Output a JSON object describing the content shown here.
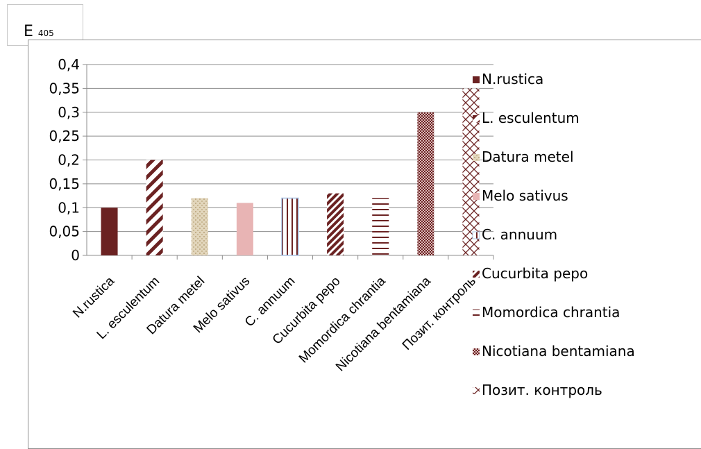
{
  "ylabel": {
    "main": "E",
    "sub": "405"
  },
  "chart_data": {
    "type": "bar",
    "title": "",
    "xlabel": "",
    "ylabel": "E 405",
    "ylim": [
      0,
      0.4
    ],
    "yticks": [
      "0",
      "0,05",
      "0,1",
      "0,15",
      "0,2",
      "0,25",
      "0,3",
      "0,35",
      "0,4"
    ],
    "grid": true,
    "legend_position": "right",
    "categories": [
      "N.rustica",
      "L. esculentum",
      "Datura metel",
      "Melo sativus",
      "C. annuum",
      "Cucurbita pepo",
      "Momordica chrantia",
      "Nicotiana bentamiana",
      "Позит. контроль"
    ],
    "values": [
      0.1,
      0.2,
      0.12,
      0.11,
      0.12,
      0.13,
      0.12,
      0.3,
      0.35
    ],
    "series": [
      {
        "name": "N.rustica",
        "value": 0.1,
        "pattern": "solid",
        "color": "#6b2222"
      },
      {
        "name": "L. esculentum",
        "value": 0.2,
        "pattern": "diagonal",
        "color": "#6b2222"
      },
      {
        "name": "Datura metel",
        "value": 0.12,
        "pattern": "texture",
        "color": "#d6c7a8"
      },
      {
        "name": "Melo sativus",
        "value": 0.11,
        "pattern": "solid",
        "color": "#e8b4b4"
      },
      {
        "name": "C. annuum",
        "value": 0.12,
        "pattern": "vertical",
        "color": "#6b2222"
      },
      {
        "name": "Cucurbita pepo",
        "value": 0.13,
        "pattern": "diagonal-dense",
        "color": "#6b2222"
      },
      {
        "name": "Momordica chrantia",
        "value": 0.12,
        "pattern": "horizontal",
        "color": "#6b2222"
      },
      {
        "name": "Nicotiana bentamiana",
        "value": 0.3,
        "pattern": "checker",
        "color": "#6b2222"
      },
      {
        "name": "Позит. контроль",
        "value": 0.35,
        "pattern": "crosshatch",
        "color": "#6b2222"
      }
    ]
  }
}
